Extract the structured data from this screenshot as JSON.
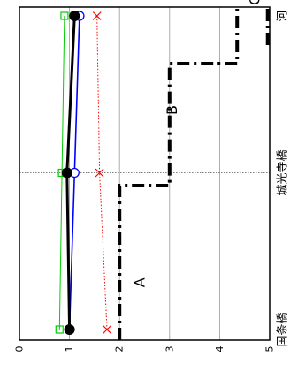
{
  "chart_data": {
    "type": "line",
    "orientation": "rotated-90-clockwise",
    "categories": [
      "国条橋",
      "城光寺橋",
      "河"
    ],
    "yticks": [
      "0",
      "1",
      "2",
      "3",
      "4",
      "5"
    ],
    "ylim": [
      0,
      5
    ],
    "grid": true,
    "series": [
      {
        "name": "",
        "marker": "filled-circle",
        "color": "#000000",
        "values": [
          1.0,
          0.95,
          1.1
        ]
      },
      {
        "name": "",
        "marker": "open-circle",
        "color": "#0000ff",
        "values": [
          1.0,
          1.1,
          1.2
        ]
      },
      {
        "name": "",
        "marker": "x",
        "color": "#ff0000",
        "values": [
          1.75,
          1.6,
          1.55
        ]
      },
      {
        "name": "",
        "marker": "open-square",
        "color": "#00cc00",
        "values": [
          0.8,
          0.85,
          0.9
        ]
      }
    ],
    "annotations": [
      {
        "text": "A",
        "x": 0.3,
        "y": 2.4
      },
      {
        "text": "B",
        "x": 1.4,
        "y": 3.05
      },
      {
        "text": "C",
        "x": 2.1,
        "y": 4.7
      }
    ]
  }
}
